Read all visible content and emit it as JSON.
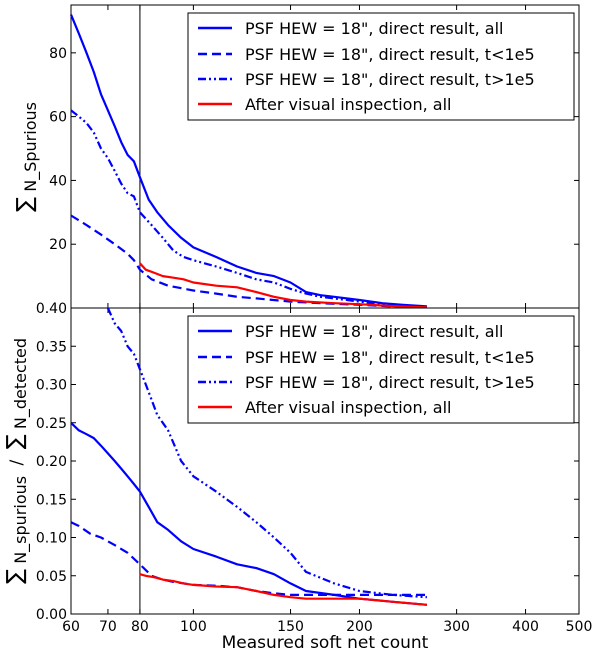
{
  "chart_data": [
    {
      "panel": "top",
      "type": "line",
      "ylabel_sum": "∑",
      "ylabel_sub": "N_Spurious",
      "xscale": "log",
      "xlim": [
        60,
        500
      ],
      "ylim": [
        0,
        95
      ],
      "yticks": [
        20,
        40,
        60,
        80
      ],
      "vline_x": 80,
      "legend_position": "top-right",
      "series": [
        {
          "name": "PSF HEW = 18\", direct result, all",
          "color": "#0000ff",
          "dash": "solid",
          "x": [
            60,
            62,
            64,
            66,
            68,
            70,
            72,
            74,
            76,
            78,
            80,
            83,
            86,
            90,
            95,
            100,
            110,
            120,
            130,
            140,
            150,
            160,
            170,
            180,
            200,
            220,
            240,
            265
          ],
          "y": [
            92,
            86,
            80,
            74,
            67,
            62,
            57,
            52,
            48,
            46,
            41,
            34,
            30,
            26,
            22,
            19,
            16,
            13,
            11,
            10,
            8,
            5,
            4,
            3.5,
            2.5,
            1.5,
            1,
            0.5
          ]
        },
        {
          "name": "PSF HEW = 18\", direct result, t<1e5",
          "color": "#0000ff",
          "dash": "dashed",
          "x": [
            60,
            64,
            68,
            72,
            76,
            78,
            80,
            84,
            90,
            100,
            110,
            120,
            130,
            150,
            170,
            200,
            230,
            265
          ],
          "y": [
            29,
            26,
            23,
            20,
            17,
            15,
            12,
            9,
            7,
            5.5,
            4.5,
            3.5,
            3,
            2,
            1.5,
            1,
            0.5,
            0.3
          ]
        },
        {
          "name": "PSF HEW = 18\", direct result, t>1e5",
          "color": "#0000ff",
          "dash": "dashdot",
          "x": [
            60,
            62,
            64,
            66,
            68,
            70,
            72,
            74,
            76,
            78,
            80,
            84,
            88,
            92,
            96,
            100,
            110,
            120,
            130,
            140,
            150,
            160,
            170,
            190,
            210,
            240,
            265
          ],
          "y": [
            62,
            60,
            58,
            55,
            50,
            47,
            43,
            39,
            36,
            35,
            30,
            26,
            22,
            18,
            16,
            15,
            13,
            11,
            9,
            8,
            6,
            4.5,
            3.5,
            2.5,
            1.5,
            0.8,
            0.4
          ]
        },
        {
          "name": "After visual inspection, all",
          "color": "#ff0000",
          "dash": "solid",
          "x": [
            80,
            82,
            85,
            88,
            92,
            96,
            100,
            110,
            120,
            130,
            140,
            150,
            160,
            180,
            200,
            230,
            265
          ],
          "y": [
            14,
            12,
            11,
            10,
            9.5,
            9,
            8,
            7,
            6.5,
            5,
            3.5,
            2.5,
            2,
            1.5,
            1.2,
            0.6,
            0.2
          ]
        }
      ]
    },
    {
      "panel": "bottom",
      "type": "line",
      "ylabel_sum1": "∑",
      "ylabel_sub1": "N_spurious",
      "ylabel_slash": "/",
      "ylabel_sum2": "∑",
      "ylabel_sub2": "N_detected",
      "xlabel": "Measured soft net count",
      "xscale": "log",
      "xlim": [
        60,
        500
      ],
      "ylim": [
        0,
        0.4
      ],
      "yticks": [
        "0.00",
        "0.05",
        "0.10",
        "0.15",
        "0.20",
        "0.25",
        "0.30",
        "0.35",
        "0.40"
      ],
      "xticks": [
        "60",
        "70",
        "80",
        "100",
        "150",
        "200",
        "300",
        "400",
        "500"
      ],
      "vline_x": 80,
      "legend_position": "top-right",
      "series": [
        {
          "name": "PSF HEW = 18\", direct result, all",
          "color": "#0000ff",
          "dash": "solid",
          "x": [
            60,
            62,
            64,
            66,
            68,
            70,
            72,
            74,
            76,
            78,
            80,
            83,
            86,
            90,
            95,
            100,
            110,
            120,
            130,
            140,
            150,
            160,
            180,
            200,
            230,
            265
          ],
          "y": [
            0.25,
            0.24,
            0.235,
            0.23,
            0.22,
            0.21,
            0.2,
            0.19,
            0.18,
            0.17,
            0.16,
            0.14,
            0.12,
            0.11,
            0.095,
            0.085,
            0.075,
            0.065,
            0.06,
            0.052,
            0.04,
            0.03,
            0.025,
            0.02,
            0.016,
            0.012
          ]
        },
        {
          "name": "PSF HEW = 18\", direct result, t<1e5",
          "color": "#0000ff",
          "dash": "dashed",
          "x": [
            60,
            62,
            65,
            68,
            72,
            76,
            80,
            84,
            88,
            92,
            96,
            100,
            110,
            120,
            130,
            140,
            150,
            170,
            200,
            265
          ],
          "y": [
            0.12,
            0.115,
            0.105,
            0.1,
            0.09,
            0.08,
            0.065,
            0.05,
            0.045,
            0.042,
            0.04,
            0.038,
            0.037,
            0.035,
            0.03,
            0.027,
            0.025,
            0.025,
            0.025,
            0.025
          ]
        },
        {
          "name": "PSF HEW = 18\", direct result, t>1e5",
          "color": "#0000ff",
          "dash": "dashdot",
          "x": [
            70,
            72,
            74,
            76,
            78,
            80,
            82,
            84,
            86,
            88,
            90,
            95,
            100,
            110,
            120,
            130,
            140,
            150,
            160,
            180,
            200,
            230,
            265
          ],
          "y": [
            0.4,
            0.38,
            0.37,
            0.35,
            0.34,
            0.32,
            0.3,
            0.28,
            0.26,
            0.25,
            0.24,
            0.2,
            0.18,
            0.16,
            0.14,
            0.12,
            0.1,
            0.08,
            0.055,
            0.04,
            0.03,
            0.025,
            0.022
          ]
        },
        {
          "name": "After visual inspection, all",
          "color": "#ff0000",
          "dash": "solid",
          "x": [
            80,
            82,
            85,
            88,
            92,
            96,
            100,
            110,
            120,
            130,
            140,
            150,
            160,
            180,
            200,
            230,
            265
          ],
          "y": [
            0.052,
            0.05,
            0.048,
            0.045,
            0.043,
            0.04,
            0.038,
            0.036,
            0.035,
            0.03,
            0.025,
            0.022,
            0.02,
            0.02,
            0.02,
            0.016,
            0.012
          ]
        }
      ]
    }
  ]
}
